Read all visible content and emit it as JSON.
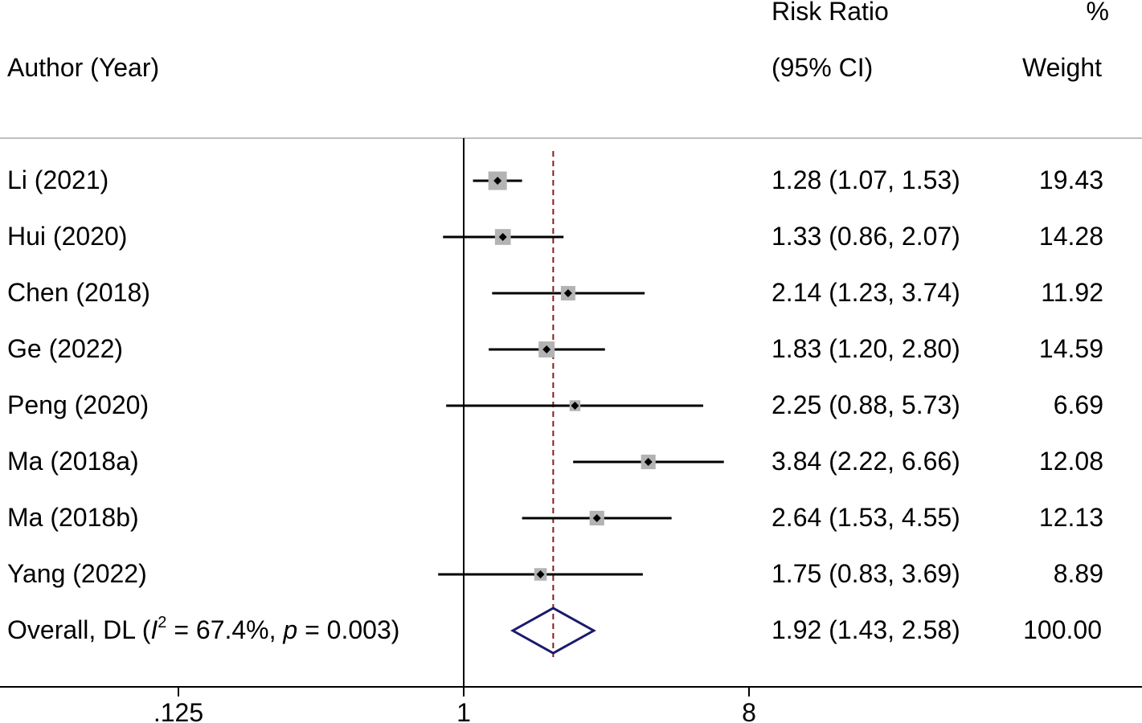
{
  "header": {
    "study_col": "Author (Year)",
    "effect_col_line1": "Risk Ratio",
    "effect_col_line2": "(95% CI)",
    "weight_col_line1": "%",
    "weight_col_line2": "Weight"
  },
  "chart_data": {
    "type": "forest",
    "x_scale": "log2",
    "xlim": [
      0.09,
      100
    ],
    "x_ticks": [
      0.125,
      1,
      8
    ],
    "x_tick_labels": [
      ".125",
      "1",
      "8"
    ],
    "reference_line": 1,
    "overall_line": 1.92,
    "studies": [
      {
        "label": "Li (2021)",
        "rr": 1.28,
        "lo": 1.07,
        "hi": 1.53,
        "ci_text": "1.28 (1.07, 1.53)",
        "weight": 19.43,
        "weight_text": "19.43"
      },
      {
        "label": "Hui (2020)",
        "rr": 1.33,
        "lo": 0.86,
        "hi": 2.07,
        "ci_text": "1.33 (0.86, 2.07)",
        "weight": 14.28,
        "weight_text": "14.28"
      },
      {
        "label": "Chen (2018)",
        "rr": 2.14,
        "lo": 1.23,
        "hi": 3.74,
        "ci_text": "2.14 (1.23, 3.74)",
        "weight": 11.92,
        "weight_text": "11.92"
      },
      {
        "label": "Ge (2022)",
        "rr": 1.83,
        "lo": 1.2,
        "hi": 2.8,
        "ci_text": "1.83 (1.20, 2.80)",
        "weight": 14.59,
        "weight_text": "14.59"
      },
      {
        "label": "Peng (2020)",
        "rr": 2.25,
        "lo": 0.88,
        "hi": 5.73,
        "ci_text": "2.25 (0.88, 5.73)",
        "weight": 6.69,
        "weight_text": "6.69"
      },
      {
        "label": "Ma (2018a)",
        "rr": 3.84,
        "lo": 2.22,
        "hi": 6.66,
        "ci_text": "3.84 (2.22, 6.66)",
        "weight": 12.08,
        "weight_text": "12.08"
      },
      {
        "label": "Ma (2018b)",
        "rr": 2.64,
        "lo": 1.53,
        "hi": 4.55,
        "ci_text": "2.64 (1.53, 4.55)",
        "weight": 12.13,
        "weight_text": "12.13"
      },
      {
        "label": "Yang (2022)",
        "rr": 1.75,
        "lo": 0.83,
        "hi": 3.69,
        "ci_text": "1.75 (0.83, 3.69)",
        "weight": 8.89,
        "weight_text": "8.89"
      }
    ],
    "overall": {
      "label_prefix": "Overall, DL (",
      "label_i": "I",
      "label_sup": "2",
      "label_mid": " = 67.4%, ",
      "label_p": "p",
      "label_end": " = 0.003)",
      "rr": 1.92,
      "lo": 1.43,
      "hi": 2.58,
      "ci_text": "1.92 (1.43, 2.58)",
      "weight_text": "100.00"
    },
    "colors": {
      "text": "#000000",
      "ci_line": "#000000",
      "weight_box": "#b3b3b3",
      "point": "#000000",
      "overall_line": "#8b1a1a",
      "diamond": "#1a1a6e",
      "divider": "#bfbfbf"
    }
  }
}
